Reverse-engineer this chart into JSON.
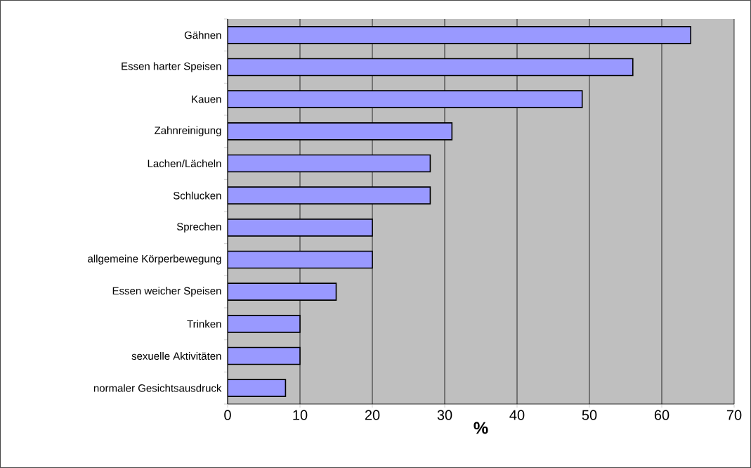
{
  "chart_data": {
    "type": "bar",
    "orientation": "horizontal",
    "xlabel": "%",
    "categories": [
      "Gähnen",
      "Essen harter Speisen",
      "Kauen",
      "Zahnreinigung",
      "Lachen/Lächeln",
      "Schlucken",
      "Sprechen",
      "allgemeine Körperbewegung",
      "Essen weicher Speisen",
      "Trinken",
      "sexuelle Aktivitäten",
      "normaler Gesichtsausdruck"
    ],
    "values": [
      64,
      56,
      49,
      31,
      28,
      28,
      20,
      20,
      15,
      10,
      10,
      8
    ],
    "color": "#9999ff",
    "xlim": [
      0,
      70
    ],
    "xticks": [
      0,
      10,
      20,
      30,
      40,
      50,
      60,
      70
    ],
    "grid": "x"
  }
}
